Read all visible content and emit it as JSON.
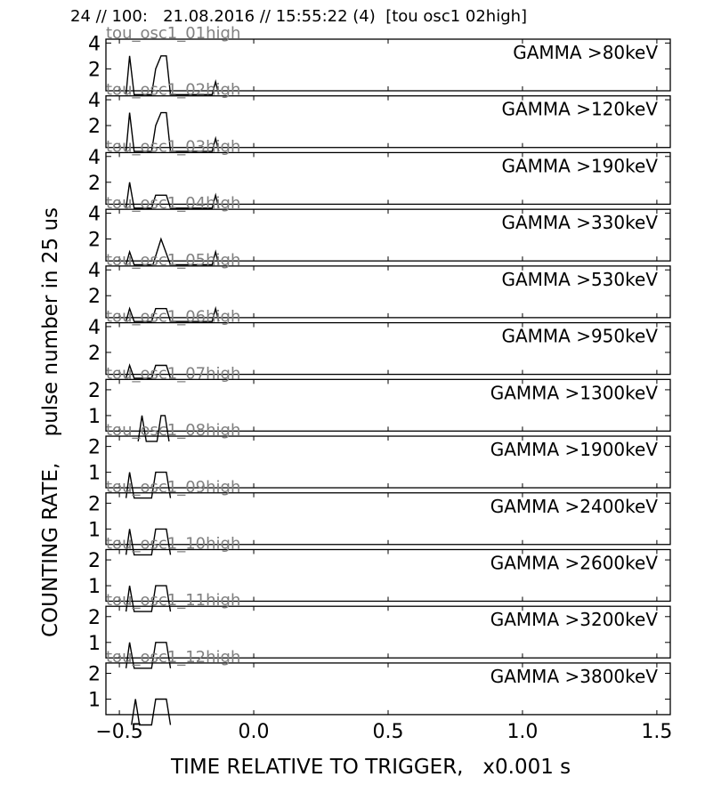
{
  "header": "24 // 100:   21.08.2016 // 15:55:22 (4)  [tou osc1 02high]",
  "ylabel": "COUNTING RATE,    pulse number in 25 us",
  "xlabel": "TIME RELATIVE TO TRIGGER,   x0.001 s",
  "chart_data": {
    "type": "line",
    "title": "24 // 100:   21.08.2016 // 15:55:22 (4)  [tou osc1 02high]",
    "xlabel": "TIME RELATIVE TO TRIGGER,   x0.001 s",
    "ylabel": "COUNTING RATE,    pulse number in 25 us",
    "xlim": [
      -0.55,
      1.55
    ],
    "xticks": [
      -0.5,
      0.0,
      0.5,
      1.0,
      1.5
    ],
    "xtick_labels": [
      "−0.5",
      "0.0",
      "0.5",
      "1.0",
      "1.5"
    ],
    "grid": false,
    "line_color": "#000000",
    "label_color": "#808080",
    "panels": [
      {
        "channel": "tou_osc1_01high",
        "label": "GAMMA >80keV",
        "ylim": [
          0.3,
          4.3
        ],
        "yticks": [
          2,
          4
        ],
        "points": [
          [
            -0.475,
            0
          ],
          [
            -0.462,
            3
          ],
          [
            -0.445,
            0
          ],
          [
            -0.38,
            0
          ],
          [
            -0.365,
            2
          ],
          [
            -0.345,
            3
          ],
          [
            -0.325,
            3
          ],
          [
            -0.31,
            0
          ],
          [
            -0.155,
            0
          ],
          [
            -0.142,
            1
          ],
          [
            -0.13,
            0
          ]
        ]
      },
      {
        "channel": "tou_osc1_02high",
        "label": "GAMMA >120keV",
        "ylim": [
          0.3,
          4.3
        ],
        "yticks": [
          2,
          4
        ],
        "points": [
          [
            -0.475,
            0
          ],
          [
            -0.462,
            3
          ],
          [
            -0.445,
            0
          ],
          [
            -0.38,
            0
          ],
          [
            -0.365,
            2
          ],
          [
            -0.345,
            3
          ],
          [
            -0.325,
            3
          ],
          [
            -0.31,
            0
          ],
          [
            -0.155,
            0
          ],
          [
            -0.142,
            1
          ],
          [
            -0.13,
            0
          ]
        ]
      },
      {
        "channel": "tou_osc1_03high",
        "label": "GAMMA >190keV",
        "ylim": [
          0.3,
          4.3
        ],
        "yticks": [
          2,
          4
        ],
        "points": [
          [
            -0.475,
            0
          ],
          [
            -0.462,
            2
          ],
          [
            -0.445,
            0
          ],
          [
            -0.38,
            0
          ],
          [
            -0.365,
            1
          ],
          [
            -0.325,
            1
          ],
          [
            -0.31,
            0
          ],
          [
            -0.155,
            0
          ],
          [
            -0.142,
            1
          ],
          [
            -0.13,
            0
          ]
        ]
      },
      {
        "channel": "tou_osc1_04high",
        "label": "GAMMA >330keV",
        "ylim": [
          0.3,
          4.3
        ],
        "yticks": [
          2,
          4
        ],
        "points": [
          [
            -0.475,
            0
          ],
          [
            -0.462,
            1
          ],
          [
            -0.445,
            0
          ],
          [
            -0.375,
            0
          ],
          [
            -0.345,
            2
          ],
          [
            -0.31,
            0
          ],
          [
            -0.155,
            0
          ],
          [
            -0.142,
            1
          ],
          [
            -0.13,
            0
          ]
        ]
      },
      {
        "channel": "tou_osc1_05high",
        "label": "GAMMA >530keV",
        "ylim": [
          0.3,
          4.3
        ],
        "yticks": [
          2,
          4
        ],
        "points": [
          [
            -0.475,
            0
          ],
          [
            -0.462,
            1
          ],
          [
            -0.445,
            0
          ],
          [
            -0.38,
            0
          ],
          [
            -0.365,
            1
          ],
          [
            -0.325,
            1
          ],
          [
            -0.31,
            0
          ],
          [
            -0.155,
            0
          ],
          [
            -0.142,
            1
          ],
          [
            -0.13,
            0
          ]
        ]
      },
      {
        "channel": "tou_osc1_06high",
        "label": "GAMMA >950keV",
        "ylim": [
          0.3,
          4.3
        ],
        "yticks": [
          2,
          4
        ],
        "points": [
          [
            -0.475,
            0
          ],
          [
            -0.462,
            1
          ],
          [
            -0.445,
            0
          ],
          [
            -0.38,
            0
          ],
          [
            -0.365,
            1
          ],
          [
            -0.325,
            1
          ],
          [
            -0.31,
            0
          ]
        ]
      },
      {
        "channel": "tou_osc1_07high",
        "label": "GAMMA >1300keV",
        "ylim": [
          0.4,
          2.4
        ],
        "yticks": [
          1,
          2
        ],
        "points": [
          [
            -0.43,
            0
          ],
          [
            -0.416,
            1
          ],
          [
            -0.4,
            0
          ],
          [
            -0.36,
            0
          ],
          [
            -0.345,
            1
          ],
          [
            -0.33,
            1
          ],
          [
            -0.315,
            0
          ]
        ]
      },
      {
        "channel": "tou_osc1_08high",
        "label": "GAMMA >1900keV",
        "ylim": [
          0.4,
          2.4
        ],
        "yticks": [
          1,
          2
        ],
        "points": [
          [
            -0.475,
            0
          ],
          [
            -0.462,
            1
          ],
          [
            -0.445,
            0
          ],
          [
            -0.38,
            0
          ],
          [
            -0.365,
            1
          ],
          [
            -0.325,
            1
          ],
          [
            -0.31,
            0
          ]
        ]
      },
      {
        "channel": "tou_osc1_09high",
        "label": "GAMMA >2400keV",
        "ylim": [
          0.4,
          2.4
        ],
        "yticks": [
          1,
          2
        ],
        "points": [
          [
            -0.475,
            0
          ],
          [
            -0.462,
            1
          ],
          [
            -0.445,
            0
          ],
          [
            -0.38,
            0
          ],
          [
            -0.365,
            1
          ],
          [
            -0.325,
            1
          ],
          [
            -0.31,
            0
          ]
        ]
      },
      {
        "channel": "tou_osc1_10high",
        "label": "GAMMA >2600keV",
        "ylim": [
          0.4,
          2.4
        ],
        "yticks": [
          1,
          2
        ],
        "points": [
          [
            -0.475,
            0
          ],
          [
            -0.462,
            1
          ],
          [
            -0.445,
            0
          ],
          [
            -0.38,
            0
          ],
          [
            -0.365,
            1
          ],
          [
            -0.325,
            1
          ],
          [
            -0.31,
            0
          ]
        ]
      },
      {
        "channel": "tou_osc1_11high",
        "label": "GAMMA >3200keV",
        "ylim": [
          0.4,
          2.4
        ],
        "yticks": [
          1,
          2
        ],
        "points": [
          [
            -0.475,
            0
          ],
          [
            -0.462,
            1
          ],
          [
            -0.445,
            0
          ],
          [
            -0.38,
            0
          ],
          [
            -0.365,
            1
          ],
          [
            -0.325,
            1
          ],
          [
            -0.31,
            0
          ]
        ]
      },
      {
        "channel": "tou_osc1_12high",
        "label": "GAMMA >3800keV",
        "ylim": [
          0.4,
          2.4
        ],
        "yticks": [
          1,
          2
        ],
        "points": [
          [
            -0.455,
            0
          ],
          [
            -0.44,
            1
          ],
          [
            -0.425,
            0
          ],
          [
            -0.38,
            0
          ],
          [
            -0.365,
            1
          ],
          [
            -0.325,
            1
          ],
          [
            -0.31,
            0
          ]
        ]
      }
    ]
  }
}
